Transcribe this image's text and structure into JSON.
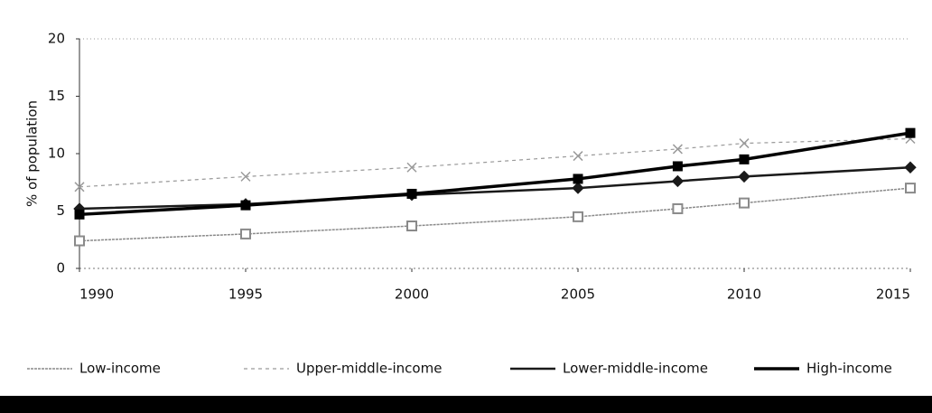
{
  "chart_data": {
    "type": "line",
    "y_label": "% of population",
    "x": [
      1990,
      1995,
      2000,
      2005,
      2008,
      2010,
      2015
    ],
    "series": [
      {
        "name": "Low-income",
        "color": "#8a8a8a",
        "values": [
          2.4,
          3.0,
          3.7,
          4.5,
          5.2,
          5.7,
          7.0
        ]
      },
      {
        "name": "Upper-middle-income",
        "color": "#9a9a9a",
        "values": [
          7.1,
          8.0,
          8.8,
          9.8,
          10.4,
          10.9,
          11.3
        ]
      },
      {
        "name": "Lower-middle-income",
        "color": "#1a1a1a",
        "values": [
          5.2,
          5.6,
          6.4,
          7.0,
          7.6,
          8.0,
          8.8
        ]
      },
      {
        "name": "High-income",
        "color": "#000000",
        "values": [
          4.7,
          5.5,
          6.5,
          7.8,
          8.9,
          9.5,
          11.8
        ]
      }
    ],
    "xlim": [
      1990,
      2015
    ],
    "xticks": [
      1990,
      1995,
      2000,
      2005,
      2010,
      2015
    ],
    "ylim": [
      0,
      20
    ],
    "yticks": [
      0,
      5,
      10,
      15,
      20
    ]
  }
}
